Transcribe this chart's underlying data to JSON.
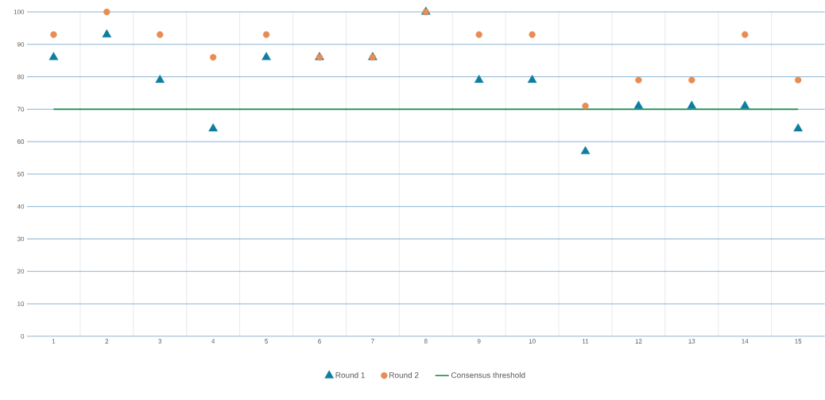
{
  "chart_data": {
    "type": "scatter",
    "categories": [
      "1",
      "2",
      "3",
      "4",
      "5",
      "6",
      "7",
      "8",
      "9",
      "10",
      "11",
      "12",
      "13",
      "14",
      "15"
    ],
    "series": [
      {
        "name": "Round 1",
        "color": "#0e7ea0",
        "marker": "triangle",
        "values": [
          86,
          93,
          79,
          64,
          86,
          86,
          86,
          100,
          79,
          79,
          57,
          71,
          71,
          71,
          64
        ]
      },
      {
        "name": "Round 2",
        "color": "#e88c55",
        "marker": "circle",
        "values": [
          93,
          100,
          93,
          86,
          93,
          86,
          86,
          100,
          93,
          93,
          71,
          79,
          79,
          93,
          79
        ]
      },
      {
        "name": "Consensus threshold",
        "type": "line",
        "color": "#1a8a4a",
        "marker": "none",
        "line_style": "solid",
        "values": [
          70,
          70,
          70,
          70,
          70,
          70,
          70,
          70,
          70,
          70,
          70,
          70,
          70,
          70,
          70
        ]
      }
    ],
    "ylim": [
      0,
      100
    ],
    "yticks": [
      0,
      10,
      20,
      30,
      40,
      50,
      60,
      70,
      80,
      90,
      100
    ],
    "grid": true,
    "legend": "bottom"
  }
}
